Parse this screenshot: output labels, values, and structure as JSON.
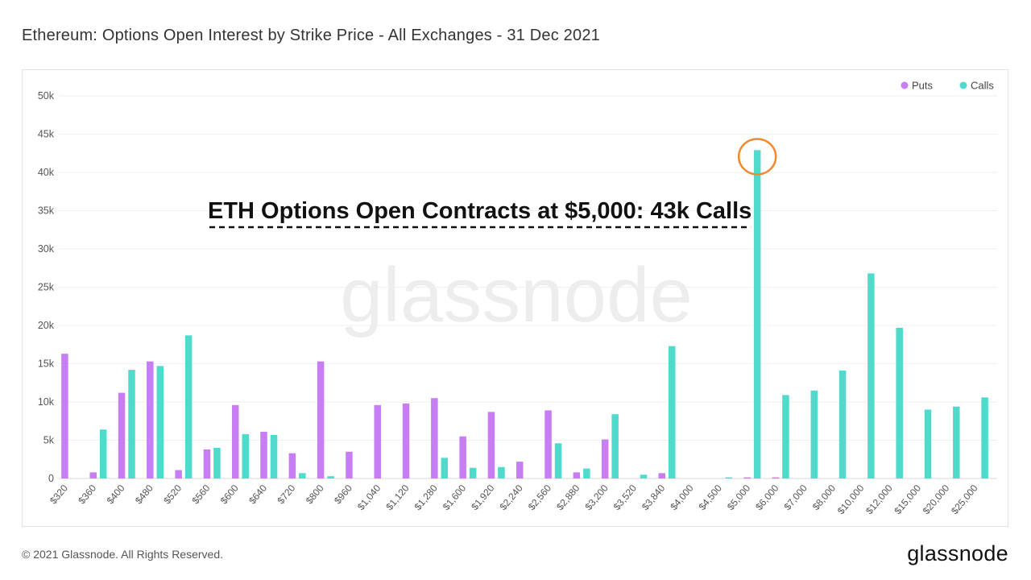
{
  "page": {
    "title": "Ethereum: Options Open Interest by Strike Price - All Exchanges - 31 Dec 2021",
    "copyright": "© 2021 Glassnode. All Rights Reserved.",
    "brand": "glassnode",
    "watermark": "glassnode"
  },
  "chart_data": {
    "type": "bar",
    "title": "Ethereum: Options Open Interest by Strike Price - All Exchanges - 31 Dec 2021",
    "xlabel": "",
    "ylabel": "",
    "ylim": [
      0,
      50000
    ],
    "y_ticks": [
      0,
      5000,
      10000,
      15000,
      20000,
      25000,
      30000,
      35000,
      40000,
      45000,
      50000
    ],
    "y_tick_labels": [
      "0",
      "5k",
      "10k",
      "15k",
      "20k",
      "25k",
      "30k",
      "35k",
      "40k",
      "45k",
      "50k"
    ],
    "grid": true,
    "legend_position": "top-right",
    "colors": {
      "Puts": "#c77df3",
      "Calls": "#4fdacb",
      "annotation_circle": "#f28a2e",
      "annotation_text": "#111111"
    },
    "categories": [
      "$320",
      "$360",
      "$400",
      "$480",
      "$520",
      "$560",
      "$600",
      "$640",
      "$720",
      "$800",
      "$960",
      "$1,040",
      "$1,120",
      "$1,280",
      "$1,600",
      "$1,920",
      "$2,240",
      "$2,560",
      "$2,880",
      "$3,200",
      "$3,520",
      "$3,840",
      "$4,000",
      "$4,500",
      "$5,000",
      "$6,000",
      "$7,000",
      "$8,000",
      "$10,000",
      "$12,000",
      "$15,000",
      "$20,000",
      "$25,000"
    ],
    "series": [
      {
        "name": "Puts",
        "values": [
          16300,
          800,
          11200,
          15300,
          1100,
          3800,
          9600,
          6100,
          3300,
          15300,
          3500,
          9600,
          9800,
          10500,
          5500,
          8700,
          2200,
          8900,
          800,
          5100,
          0,
          700,
          0,
          0,
          150,
          150,
          0,
          0,
          0,
          0,
          0,
          0,
          0
        ]
      },
      {
        "name": "Calls",
        "values": [
          0,
          6400,
          14200,
          14700,
          18700,
          4000,
          5800,
          5700,
          700,
          300,
          0,
          0,
          0,
          2700,
          1400,
          1500,
          0,
          4600,
          1300,
          8400,
          500,
          17300,
          0,
          150,
          42900,
          10900,
          11500,
          14100,
          26800,
          19700,
          9000,
          9400,
          10600
        ]
      }
    ],
    "annotation": {
      "text": "ETH Options Open Contracts at $5,000: 43k Calls",
      "category": "$5,000",
      "series": "Calls",
      "value": 43000
    }
  }
}
